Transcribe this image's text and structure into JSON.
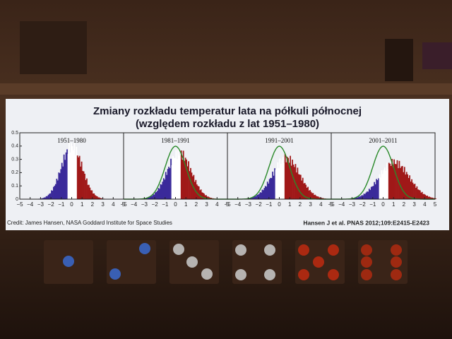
{
  "slide": {
    "title": [
      "Zmiany rozkładu temperatur lata na półkuli północnej",
      "(względem rozkładu z lat 1951–1980)"
    ],
    "yticks": [
      0,
      0.1,
      0.2,
      0.3,
      0.4,
      0.5
    ],
    "xticks": [
      {
        "value": -5,
        "label": "−5"
      },
      {
        "value": -4,
        "label": "−4"
      },
      {
        "value": -3,
        "label": "−3"
      },
      {
        "value": -2,
        "label": "−2"
      },
      {
        "value": -1,
        "label": "−1"
      },
      0,
      1,
      2,
      3,
      4,
      5
    ],
    "panels": [
      {
        "label": "1951–1980"
      },
      {
        "label": "1981–1991"
      },
      {
        "label": "1991–2001"
      },
      {
        "label": "2001–2011"
      }
    ],
    "credit": "Credit: James Hansen,  NASA Goddard Institute for Space Studies",
    "citation": "Hansen J et al. PNAS 2012;109:E2415-E2423"
  }
}
